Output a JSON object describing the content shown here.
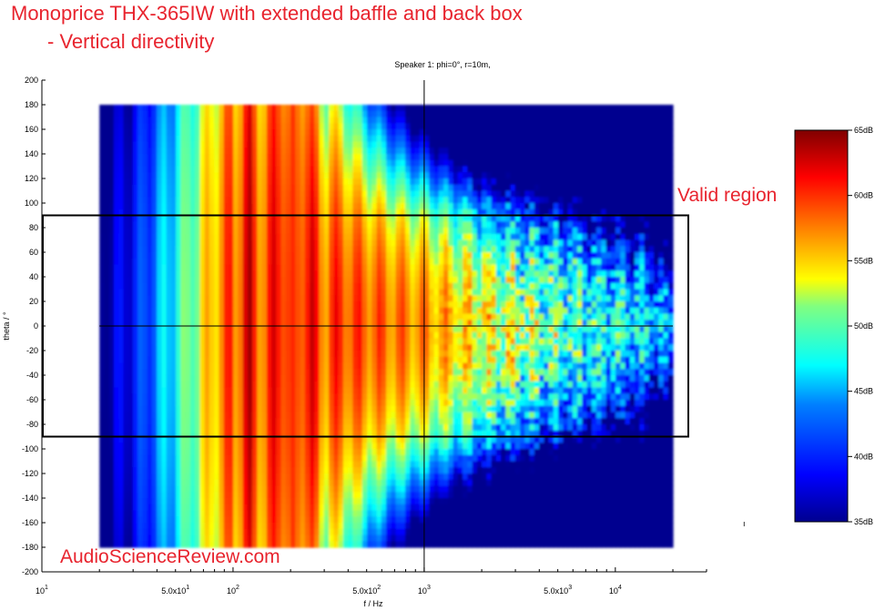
{
  "header": {
    "title_line1": "Monoprice THX-365IW with extended baffle and back box",
    "title_line2": "- Vertical directivity",
    "subtitle": "Speaker 1: phi=0°, r=10m,"
  },
  "annotations": {
    "valid_region_label": "Valid region",
    "watermark": "AudioScienceReview.com",
    "small_mark": "ı"
  },
  "colors": {
    "title": "#e8242e",
    "valid_box": "#000000"
  },
  "chart_data": {
    "type": "heatmap",
    "title": "Speaker 1: phi=0°, r=10m,",
    "xlabel": "f / Hz",
    "ylabel": "theta / °",
    "x_scale": "log",
    "xlim": [
      10,
      30000
    ],
    "ylim": [
      -200,
      200
    ],
    "data_extent": {
      "f_min": 20,
      "f_max": 20000,
      "theta_min": -180,
      "theta_max": 180
    },
    "x_ticks": [
      {
        "value": 10,
        "mantissa": "10",
        "exp": "1"
      },
      {
        "value": 50,
        "mantissa": "5.0x10",
        "exp": "1"
      },
      {
        "value": 100,
        "mantissa": "10",
        "exp": "2"
      },
      {
        "value": 500,
        "mantissa": "5.0x10",
        "exp": "2"
      },
      {
        "value": 1000,
        "mantissa": "10",
        "exp": "3"
      },
      {
        "value": 5000,
        "mantissa": "5.0x10",
        "exp": "3"
      },
      {
        "value": 10000,
        "mantissa": "10",
        "exp": "4"
      }
    ],
    "y_ticks": [
      "200",
      "180",
      "160",
      "140",
      "120",
      "100",
      "80",
      "60",
      "40",
      "20",
      "0",
      "-20",
      "-40",
      "-60",
      "-80",
      "-100",
      "-120",
      "-140",
      "-160",
      "-180",
      "-200"
    ],
    "colorbar": {
      "min_db": 35,
      "max_db": 65,
      "ticks": [
        "65dB",
        "60dB",
        "55dB",
        "50dB",
        "45dB",
        "40dB",
        "35dB"
      ]
    },
    "reference_lines": {
      "theta": 0,
      "frequency": 1000
    },
    "valid_region": {
      "theta_min": -90,
      "theta_max": 90
    }
  }
}
